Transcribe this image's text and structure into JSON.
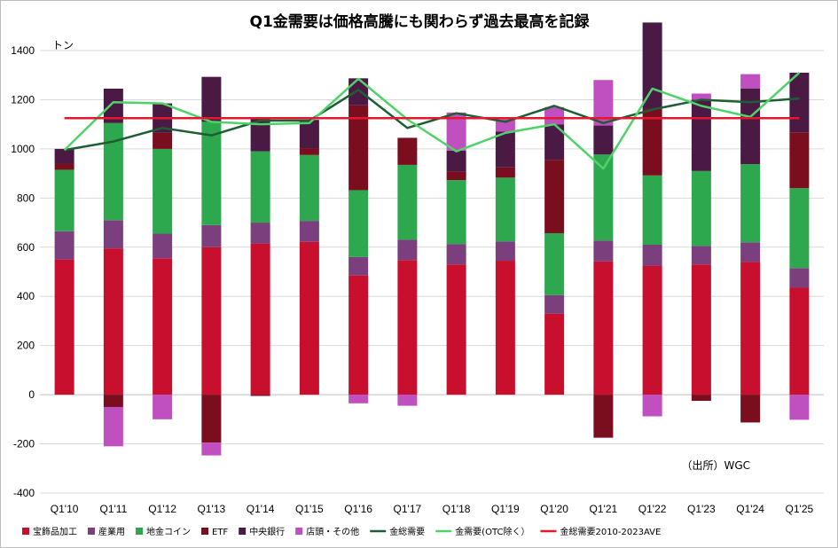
{
  "chart_data": {
    "type": "bar",
    "title": "Q1金需要は価格高騰にも関わらず過去最高を記録",
    "unit_label": "トン",
    "source": "（出所）WGC",
    "ylim": [
      -400,
      1400
    ],
    "yticks": [
      "-400",
      "-200",
      "0",
      "200",
      "400",
      "600",
      "800",
      "1000",
      "1200",
      "1400"
    ],
    "grid": true,
    "legend_position": "bottom",
    "categories": [
      "Q1'10",
      "Q1'11",
      "Q1'12",
      "Q1'13",
      "Q1'14",
      "Q1'15",
      "Q1'16",
      "Q1'17",
      "Q1'18",
      "Q1'19",
      "Q1'20",
      "Q1'21",
      "Q1'22",
      "Q1'23",
      "Q1'24",
      "Q1'25"
    ],
    "series": [
      {
        "name": "宝飾品加工",
        "kind": "bar",
        "color": "#c8102e",
        "values": [
          550,
          595,
          555,
          600,
          615,
          622,
          485,
          548,
          530,
          545,
          330,
          542,
          525,
          530,
          540,
          435
        ]
      },
      {
        "name": "産業用",
        "kind": "bar",
        "color": "#7b3f7e",
        "values": [
          115,
          115,
          100,
          90,
          85,
          85,
          75,
          82,
          83,
          78,
          75,
          85,
          85,
          75,
          80,
          80
        ]
      },
      {
        "name": "地金コイン",
        "kind": "bar",
        "color": "#2ea84f",
        "values": [
          250,
          395,
          345,
          420,
          290,
          268,
          272,
          305,
          260,
          260,
          252,
          350,
          282,
          305,
          318,
          325
        ]
      },
      {
        "name": "ETF",
        "kind": "bar",
        "color": "#7a0e1f",
        "values": [
          25,
          -50,
          65,
          -195,
          -5,
          28,
          345,
          110,
          35,
          42,
          298,
          -175,
          270,
          -25,
          -113,
          227
        ]
      },
      {
        "name": "中央銀行",
        "kind": "bar",
        "color": "#4a1a45",
        "values": [
          60,
          140,
          120,
          183,
          133,
          115,
          110,
          0,
          85,
          145,
          145,
          118,
          352,
          290,
          308,
          243
        ]
      },
      {
        "name": "店頭・その他",
        "kind": "bar",
        "color": "#c04fc0",
        "values": [
          0,
          -160,
          -100,
          -52,
          0,
          0,
          -35,
          -45,
          155,
          50,
          70,
          185,
          -88,
          25,
          58,
          -102
        ]
      },
      {
        "name": "金総需要",
        "kind": "line",
        "color": "#1e5e34",
        "values": [
          995,
          1030,
          1085,
          1055,
          1115,
          1115,
          1240,
          1085,
          1145,
          1110,
          1175,
          1105,
          1160,
          1200,
          1190,
          1205
        ]
      },
      {
        "name": "金需要(OTC除く）",
        "kind": "line",
        "color": "#4fd26a",
        "values": [
          995,
          1190,
          1185,
          1110,
          1100,
          1105,
          1285,
          1120,
          990,
          1065,
          1100,
          920,
          1245,
          1175,
          1130,
          1310
        ]
      },
      {
        "name": "金総需要2010-2023AVE",
        "kind": "line",
        "color": "#e3172d",
        "values": [
          1125,
          1125,
          1125,
          1125,
          1125,
          1125,
          1125,
          1125,
          1125,
          1125,
          1125,
          1125,
          1125,
          1125,
          1125,
          1125
        ]
      }
    ]
  }
}
